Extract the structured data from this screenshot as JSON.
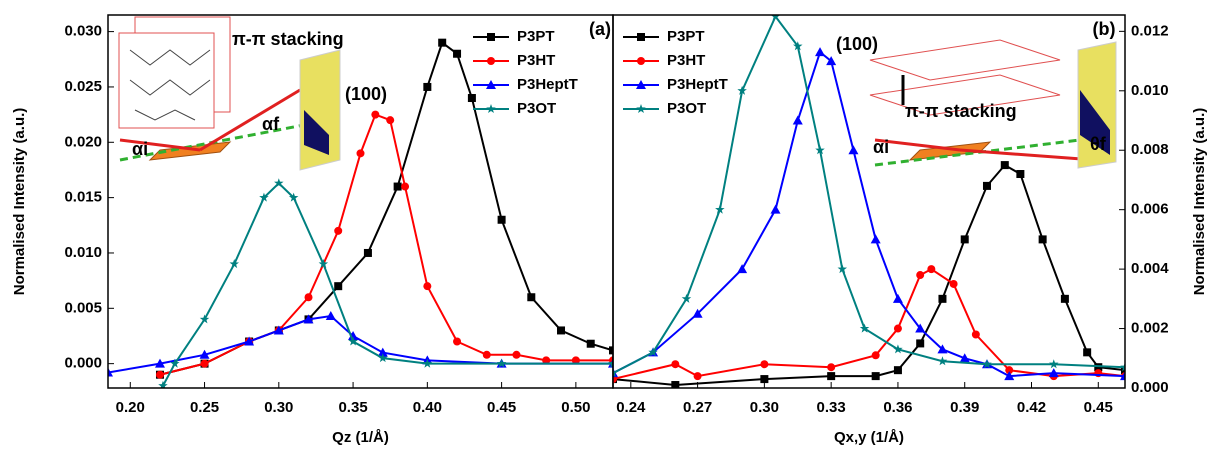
{
  "chart_data": [
    {
      "type": "line",
      "x_label": "Qz (1/Å)",
      "y_label": "Normalised Intensity (a.u.)",
      "y_axis_side": "left",
      "xlim": [
        0.185,
        0.525
      ],
      "ylim": [
        -0.0022,
        0.0315
      ],
      "xticks": [
        {
          "value": 0.2,
          "label": "0.20"
        },
        {
          "value": 0.25,
          "label": "0.25"
        },
        {
          "value": 0.3,
          "label": "0.30"
        },
        {
          "value": 0.35,
          "label": "0.35"
        },
        {
          "value": 0.4,
          "label": "0.40"
        },
        {
          "value": 0.45,
          "label": "0.45"
        },
        {
          "value": 0.5,
          "label": "0.50"
        }
      ],
      "yticks": [
        {
          "value": 0,
          "label": "0.000"
        },
        {
          "value": 0.005,
          "label": "0.005"
        },
        {
          "value": 0.01,
          "label": "0.010"
        },
        {
          "value": 0.015,
          "label": "0.015"
        },
        {
          "value": 0.02,
          "label": "0.020"
        },
        {
          "value": 0.025,
          "label": "0.025"
        },
        {
          "value": 0.03,
          "label": "0.030"
        }
      ],
      "legend": "upper right",
      "annotations": [
        "π-π stacking",
        "(100)",
        "(a)",
        "αi",
        "αf"
      ],
      "series": [
        {
          "name": "P3PT",
          "color": "#000000",
          "marker": "square",
          "x": [
            0.22,
            0.25,
            0.28,
            0.3,
            0.32,
            0.34,
            0.36,
            0.38,
            0.4,
            0.41,
            0.42,
            0.43,
            0.45,
            0.47,
            0.49,
            0.51,
            0.525
          ],
          "values": [
            -0.001,
            0.0,
            0.002,
            0.003,
            0.004,
            0.007,
            0.01,
            0.016,
            0.025,
            0.029,
            0.028,
            0.024,
            0.013,
            0.006,
            0.003,
            0.0018,
            0.0012
          ]
        },
        {
          "name": "P3HT",
          "color": "#ff0000",
          "marker": "circle",
          "x": [
            0.22,
            0.25,
            0.28,
            0.3,
            0.32,
            0.34,
            0.355,
            0.365,
            0.375,
            0.385,
            0.4,
            0.42,
            0.44,
            0.46,
            0.48,
            0.5,
            0.525
          ],
          "values": [
            -0.001,
            0.0,
            0.002,
            0.003,
            0.006,
            0.012,
            0.019,
            0.0225,
            0.022,
            0.016,
            0.007,
            0.002,
            0.0008,
            0.0008,
            0.0003,
            0.0003,
            0.0003
          ]
        },
        {
          "name": "P3HeptT",
          "color": "#0000ff",
          "marker": "triangle",
          "x": [
            0.185,
            0.22,
            0.25,
            0.28,
            0.3,
            0.32,
            0.335,
            0.35,
            0.37,
            0.4,
            0.45,
            0.525
          ],
          "values": [
            -0.0008,
            0.0,
            0.0008,
            0.002,
            0.003,
            0.004,
            0.0043,
            0.0025,
            0.001,
            0.0003,
            0.0,
            0.0
          ]
        },
        {
          "name": "P3OT",
          "color": "#008080",
          "marker": "star",
          "x": [
            0.222,
            0.23,
            0.25,
            0.27,
            0.29,
            0.3,
            0.31,
            0.33,
            0.35,
            0.37,
            0.4,
            0.45,
            0.525
          ],
          "values": [
            -0.002,
            0.0,
            0.004,
            0.009,
            0.015,
            0.0163,
            0.015,
            0.009,
            0.002,
            0.0005,
            0.0,
            0.0,
            0.0
          ]
        }
      ]
    },
    {
      "type": "line",
      "x_label": "Qx,y (1/Å)",
      "y_label": "Normalised Intensity (a.u.)",
      "y_axis_side": "right",
      "xlim": [
        0.232,
        0.462
      ],
      "ylim": [
        0,
        0.01255
      ],
      "xticks": [
        {
          "value": 0.24,
          "label": "0.24"
        },
        {
          "value": 0.27,
          "label": "0.27"
        },
        {
          "value": 0.3,
          "label": "0.30"
        },
        {
          "value": 0.33,
          "label": "0.33"
        },
        {
          "value": 0.36,
          "label": "0.36"
        },
        {
          "value": 0.39,
          "label": "0.39"
        },
        {
          "value": 0.42,
          "label": "0.42"
        },
        {
          "value": 0.45,
          "label": "0.45"
        }
      ],
      "yticks": [
        {
          "value": 0,
          "label": "0.000"
        },
        {
          "value": 0.002,
          "label": "0.002"
        },
        {
          "value": 0.004,
          "label": "0.004"
        },
        {
          "value": 0.006,
          "label": "0.006"
        },
        {
          "value": 0.008,
          "label": "0.008"
        },
        {
          "value": 0.01,
          "label": "0.010"
        },
        {
          "value": 0.012,
          "label": "0.012"
        }
      ],
      "legend": "upper left",
      "annotations": [
        "(100)",
        "π-π stacking",
        "(b)",
        "αi",
        "θf"
      ],
      "series": [
        {
          "name": "P3PT",
          "color": "#000000",
          "marker": "square",
          "x": [
            0.232,
            0.26,
            0.3,
            0.33,
            0.35,
            0.36,
            0.37,
            0.38,
            0.39,
            0.4,
            0.408,
            0.415,
            0.425,
            0.435,
            0.445,
            0.45,
            0.462
          ],
          "values": [
            0.0003,
            0.0001,
            0.0003,
            0.0004,
            0.0004,
            0.0006,
            0.0015,
            0.003,
            0.005,
            0.0068,
            0.0075,
            0.0072,
            0.005,
            0.003,
            0.0012,
            0.0007,
            0.0006
          ]
        },
        {
          "name": "P3HT",
          "color": "#ff0000",
          "marker": "circle",
          "x": [
            0.232,
            0.26,
            0.27,
            0.3,
            0.33,
            0.35,
            0.36,
            0.37,
            0.375,
            0.385,
            0.395,
            0.41,
            0.43,
            0.45,
            0.462
          ],
          "values": [
            0.0003,
            0.0008,
            0.0004,
            0.0008,
            0.0007,
            0.0011,
            0.002,
            0.0038,
            0.004,
            0.0035,
            0.0018,
            0.0006,
            0.0004,
            0.0005,
            0.0004
          ]
        },
        {
          "name": "P3HeptT",
          "color": "#0000ff",
          "marker": "triangle",
          "x": [
            0.232,
            0.25,
            0.27,
            0.29,
            0.305,
            0.315,
            0.325,
            0.33,
            0.34,
            0.35,
            0.36,
            0.37,
            0.38,
            0.39,
            0.4,
            0.41,
            0.43,
            0.462
          ],
          "values": [
            0.0005,
            0.0012,
            0.0025,
            0.004,
            0.006,
            0.009,
            0.0113,
            0.011,
            0.008,
            0.005,
            0.003,
            0.002,
            0.0013,
            0.001,
            0.0008,
            0.0004,
            0.0005,
            0.0004
          ]
        },
        {
          "name": "P3OT",
          "color": "#008080",
          "marker": "star",
          "x": [
            0.232,
            0.25,
            0.265,
            0.28,
            0.29,
            0.305,
            0.315,
            0.325,
            0.335,
            0.345,
            0.36,
            0.38,
            0.4,
            0.43,
            0.462
          ],
          "values": [
            0.0005,
            0.0012,
            0.003,
            0.006,
            0.01,
            0.0125,
            0.0115,
            0.008,
            0.004,
            0.002,
            0.0013,
            0.0009,
            0.0008,
            0.0008,
            0.0007
          ]
        }
      ]
    }
  ]
}
